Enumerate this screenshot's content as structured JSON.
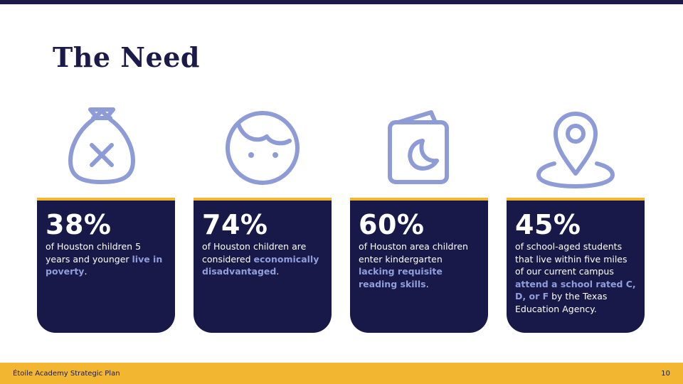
{
  "slide": {
    "title": "The Need",
    "accent_color": "#f3b631",
    "navy_color": "#181849",
    "highlight_color": "#8f9fdc",
    "icon_color": "#8d9bd6"
  },
  "cards": [
    {
      "icon": "money-bag-x-icon",
      "stat": "38%",
      "desc_before": "of Houston children 5 years and younger ",
      "highlight": "live in poverty",
      "desc_after": "."
    },
    {
      "icon": "child-face-icon",
      "stat": "74%",
      "desc_before": "of Houston children are considered ",
      "highlight": "economically disadvantaged",
      "desc_after": "."
    },
    {
      "icon": "book-moon-icon",
      "stat": "60%",
      "desc_before": "of Houston area children enter kindergarten ",
      "highlight": "lacking requisite reading skills",
      "desc_after": "."
    },
    {
      "icon": "map-pin-icon",
      "stat": "45%",
      "desc_before": "of school-aged students that live within five miles of our current campus ",
      "highlight": "attend a school rated C, D, or F",
      "desc_after": " by the Texas Education Agency."
    }
  ],
  "footer": {
    "left_text": "Étoile Academy Strategic Plan",
    "page_number": "10"
  }
}
